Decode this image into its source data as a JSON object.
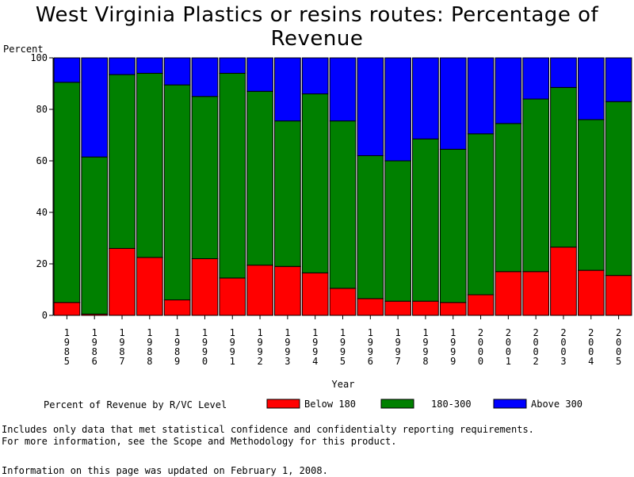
{
  "chart_data": {
    "type": "bar",
    "stacked": true,
    "title": "West Virginia Plastics or resins routes: Percentage of Revenue",
    "ylabel": "Percent",
    "xlabel": "Year",
    "ylim": [
      0,
      100
    ],
    "yticks": [
      "0",
      "20",
      "40",
      "60",
      "80",
      "100"
    ],
    "categories": [
      "1985",
      "1986",
      "1987",
      "1988",
      "1989",
      "1990",
      "1991",
      "1992",
      "1993",
      "1994",
      "1995",
      "1996",
      "1997",
      "1998",
      "1999",
      "2000",
      "2001",
      "2002",
      "2003",
      "2004",
      "2005"
    ],
    "series": [
      {
        "name": "Below 180",
        "color": "#ff0000",
        "values": [
          5,
          0.5,
          26,
          22.5,
          6,
          22,
          14.5,
          19.5,
          19,
          16.5,
          10.5,
          6.5,
          5.5,
          5.5,
          5,
          8,
          17,
          17,
          26.5,
          17.5,
          15.5
        ]
      },
      {
        "name": "180-300",
        "color": "#008000",
        "values": [
          85.5,
          61,
          67.5,
          71.5,
          83.5,
          63,
          79.5,
          67.5,
          56.5,
          69.5,
          65,
          55.5,
          54.5,
          63,
          59.5,
          62.5,
          57.5,
          67,
          62,
          58.5,
          67.5
        ]
      },
      {
        "name": "Above 300",
        "color": "#0000ff",
        "values": [
          9.5,
          38.5,
          6.5,
          6,
          10.5,
          15,
          6,
          13,
          24.5,
          14,
          24.5,
          38,
          40,
          31.5,
          35.5,
          29.5,
          25.5,
          16,
          11.5,
          24,
          17
        ]
      }
    ],
    "legend_title": "Percent of Revenue by R/VC Level",
    "legend_position": "bottom",
    "grid": false
  },
  "notes": {
    "line1": "Includes only data that met statistical confidence and confidentialty reporting requirements.",
    "line2": "For more information, see the Scope and Methodology for this product.",
    "updated": "Information on this page was updated on February 1, 2008."
  }
}
